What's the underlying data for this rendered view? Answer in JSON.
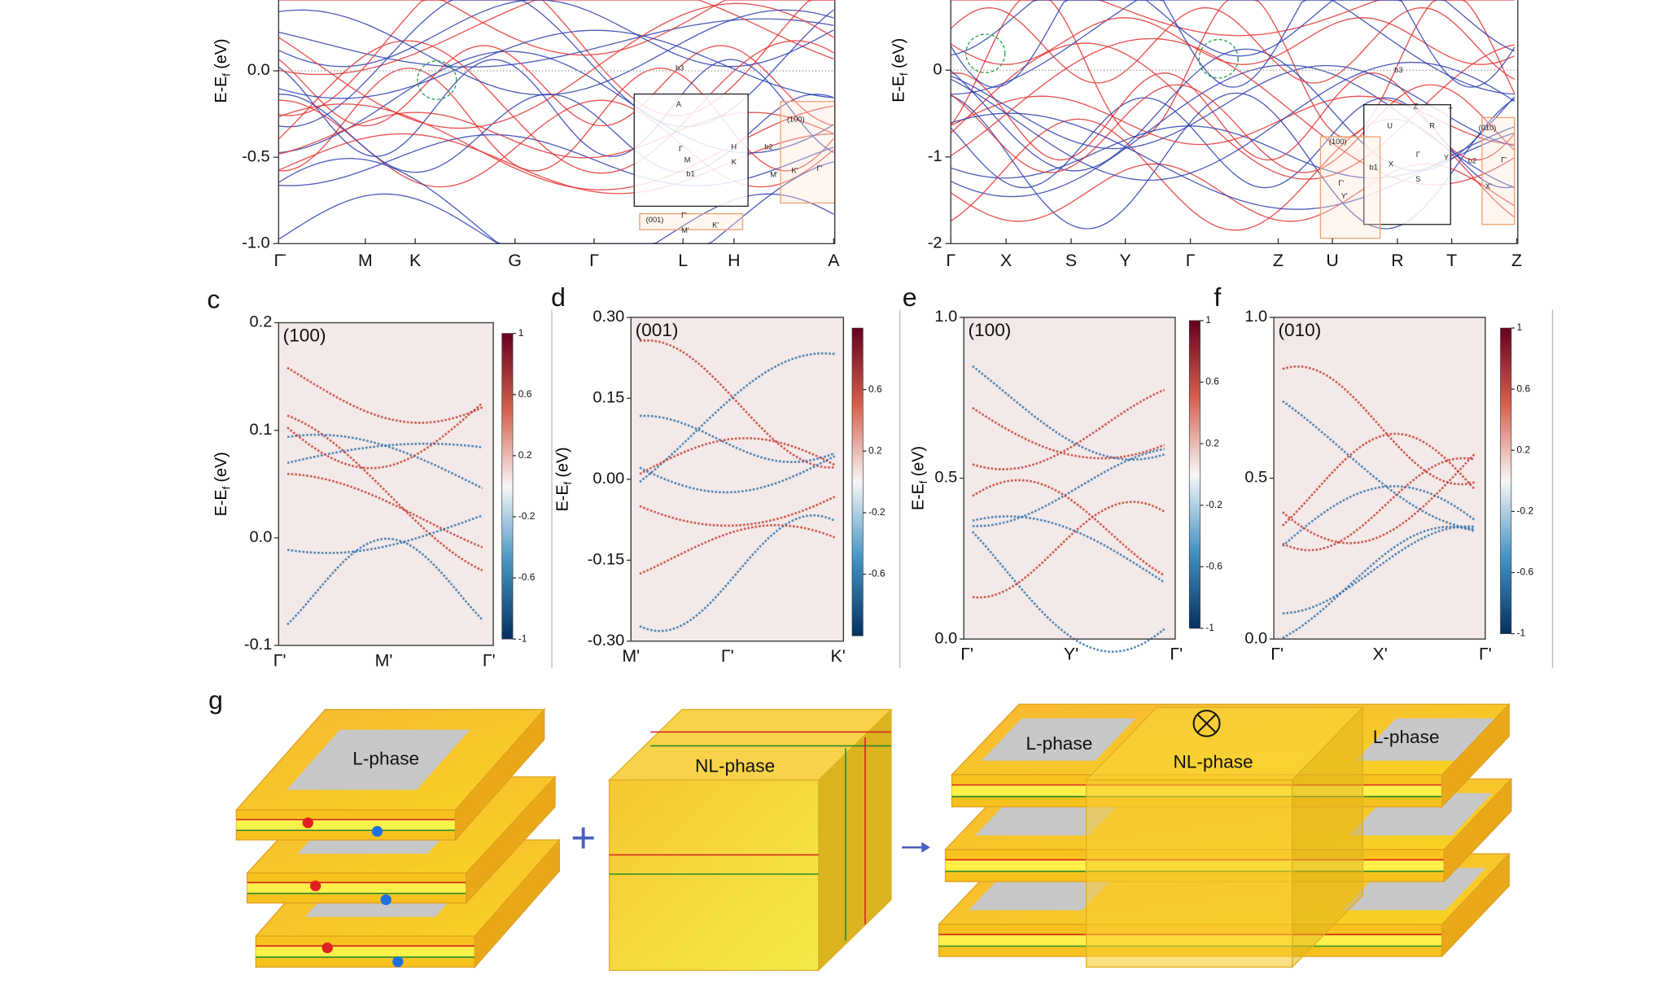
{
  "panel_a": {
    "ylabel": {
      "main": "E-E",
      "sub": "f",
      "unit": "(eV)"
    },
    "ylim": [
      -1.0,
      0.41
    ],
    "yticks": [
      {
        "value": 0,
        "label": "0.0"
      },
      {
        "value": -0.5,
        "label": "-0.5"
      },
      {
        "value": -1,
        "label": "-1.0"
      }
    ],
    "kpoints": [
      "Γ̄",
      "M",
      "K",
      "G",
      "Γ",
      "L",
      "H",
      "A"
    ],
    "inset_labels": [
      "b3",
      "A",
      "H",
      "Γ",
      "M",
      "K",
      "b2",
      "b1",
      "M'",
      "(100)",
      "K'",
      "Γ'",
      "(001)",
      "Γ'",
      "M'",
      "K'"
    ]
  },
  "panel_b": {
    "ylabel": {
      "main": "E-E",
      "sub": "f",
      "unit": "(eV)"
    },
    "ylim": [
      -2,
      0.81
    ],
    "yticks": [
      0,
      -1,
      -2
    ],
    "kpoints": [
      "Γ",
      "X",
      "S",
      "Y",
      "Γ",
      "Z",
      "U",
      "R",
      "T",
      "Z"
    ],
    "inset_labels": [
      "b3",
      "Z",
      "T",
      "U",
      "R",
      "(100)",
      "(010)",
      "b1",
      "X",
      "Γ",
      "Y",
      "b2",
      "S",
      "Γ'",
      "Y'",
      "X'",
      "Γ'"
    ]
  },
  "panel_c": {
    "label": "c",
    "surface": "(100)",
    "ylabel": {
      "main": "E-E",
      "sub": "f",
      "unit": "(eV)"
    },
    "ylim": [
      -0.1,
      0.2
    ],
    "yticks": [
      0.2,
      0.1,
      {
        "value": 0,
        "label": "0.0"
      },
      -0.1
    ],
    "kpoints": [
      "Γ'",
      "M'",
      "Γ'"
    ],
    "colorbar_lim": [
      -1,
      1
    ],
    "colorbar_ticks": [
      1,
      0.6,
      0.2,
      -0.2,
      -0.6,
      -1
    ]
  },
  "panel_d": {
    "label": "d",
    "surface": "(001)",
    "ylabel": {
      "main": "E-E",
      "sub": "f",
      "unit": "(eV)"
    },
    "ylim": [
      -0.3,
      0.3
    ],
    "yticks": [
      {
        "value": 0.3,
        "label": "0.30"
      },
      0.15,
      {
        "value": 0,
        "label": "0.00"
      },
      -0.15,
      {
        "value": -0.3,
        "label": "-0.30"
      }
    ],
    "kpoints": [
      "M'",
      "Γ'",
      "K'"
    ],
    "colorbar_lim": [
      -1,
      1
    ],
    "colorbar_ticks": [
      0.6,
      0.2,
      -0.2,
      -0.6
    ]
  },
  "panel_e": {
    "label": "e",
    "surface": "(100)",
    "ylabel": {
      "main": "E-E",
      "sub": "f",
      "unit": "(eV)"
    },
    "ylim": [
      0,
      1
    ],
    "yticks": [
      {
        "value": 1,
        "label": "1.0"
      },
      0.5,
      {
        "value": 0,
        "label": "0.0"
      }
    ],
    "kpoints": [
      "Γ'",
      "Y'",
      "Γ'"
    ],
    "colorbar_lim": [
      -1,
      1
    ],
    "colorbar_ticks": [
      1,
      0.6,
      0.2,
      -0.2,
      -0.6,
      -1
    ]
  },
  "panel_f": {
    "label": "f",
    "surface": "(010)",
    "ylim": [
      0,
      1
    ],
    "yticks": [
      {
        "value": 1,
        "label": "1.0"
      },
      0.5,
      {
        "value": 0,
        "label": "0.0"
      }
    ],
    "kpoints": [
      "Γ'",
      "X'",
      "Γ'"
    ],
    "colorbar_lim": [
      -1,
      1
    ],
    "colorbar_ticks": [
      1,
      0.6,
      0.2,
      -0.2,
      -0.6,
      -1
    ]
  },
  "panel_g": {
    "label": "g",
    "plus": "+",
    "left_phase": "L-phase",
    "middle_phase": "NL-phase",
    "right_phases": [
      "L-phase",
      "NL-phase",
      "L-phase"
    ]
  }
}
